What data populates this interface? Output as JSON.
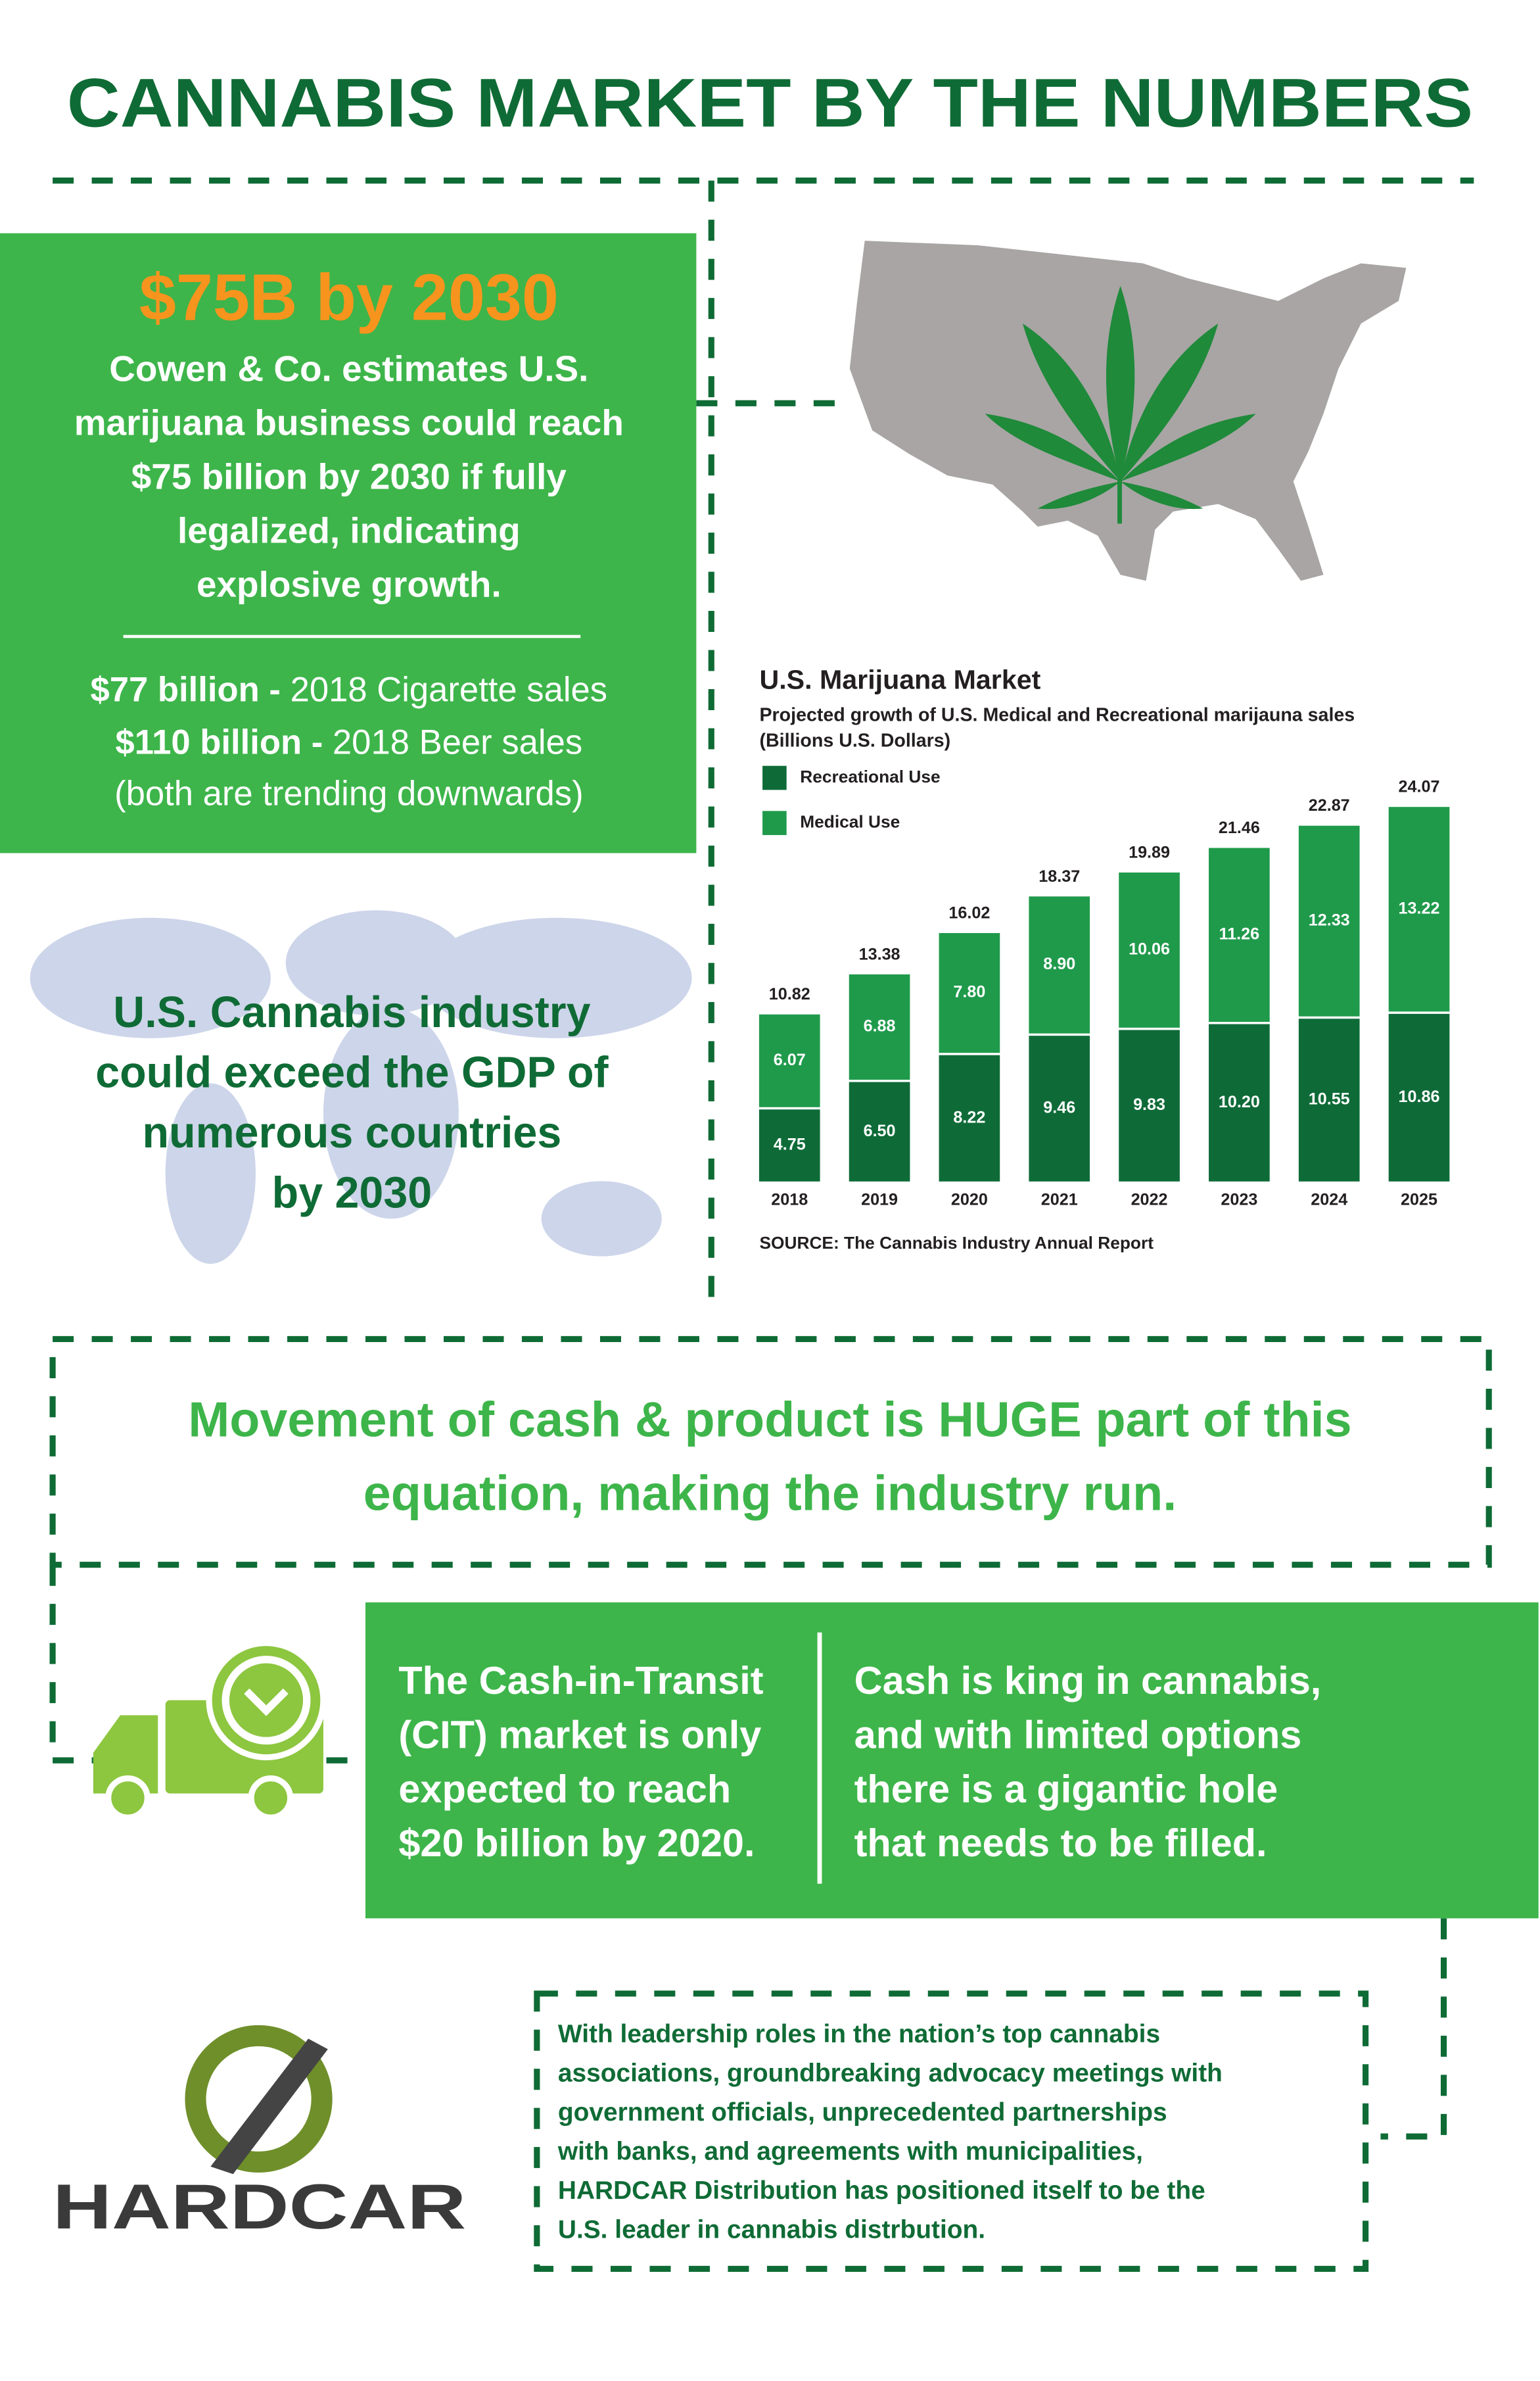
{
  "header": {
    "title": "CANNABIS MARKET BY THE NUMBERS"
  },
  "left_panel": {
    "headline": "$75B by 2030",
    "lines": [
      "Cowen & Co. estimates U.S.",
      "marijuana business could reach",
      "$75 billion by 2030 if fully",
      "legalized, indicating",
      "explosive growth."
    ],
    "comparisons": [
      {
        "bold": "$77 billion -",
        "text": "2018 Cigarette sales"
      },
      {
        "bold": "$110 billion -",
        "text": "2018 Beer sales"
      }
    ],
    "note": "(both are trending downwards)"
  },
  "world_panel": {
    "lines": [
      "U.S. Cannabis industry",
      "could exceed the GDP of",
      "numerous countries",
      "by 2030"
    ]
  },
  "chart_data": {
    "type": "bar",
    "stacked": true,
    "title": "U.S. Marijuana Market",
    "subtitle": [
      "Projected growth of U.S. Medical and Recreational marijauna sales",
      "(Billions U.S. Dollars)"
    ],
    "categories": [
      "2018",
      "2019",
      "2020",
      "2021",
      "2022",
      "2023",
      "2024",
      "2025"
    ],
    "series": [
      {
        "name": "Recreational Use",
        "color": "#0e6b38",
        "values": [
          4.75,
          6.5,
          8.22,
          9.46,
          9.83,
          10.2,
          10.55,
          10.86
        ],
        "value_labels": [
          "4.75",
          "6.50",
          "8.22",
          "9.46",
          "9.83",
          "10.20",
          "10.55",
          "10.86"
        ]
      },
      {
        "name": "Medical Use",
        "color": "#1f9a4b",
        "values": [
          6.07,
          6.88,
          7.8,
          8.9,
          10.06,
          11.26,
          12.33,
          13.22
        ],
        "value_labels": [
          "6.07",
          "6.88",
          "7.80",
          "8.90",
          "10.06",
          "11.26",
          "12.33",
          "13.22"
        ]
      }
    ],
    "totals": [
      10.82,
      13.38,
      16.02,
      18.37,
      19.89,
      21.46,
      22.87,
      24.07
    ],
    "source": "SOURCE: The Cannabis Industry Annual Report"
  },
  "movement": {
    "lines": [
      "Movement of cash & product is HUGE part of this",
      "equation, making the industry run."
    ]
  },
  "cit": {
    "lines": [
      "The Cash-in-Transit",
      "(CIT) market is only",
      "expected to reach",
      "$20 billion by 2020."
    ]
  },
  "cash": {
    "lines": [
      "Cash is king in cannabis,",
      "and with limited options",
      "there is a gigantic hole",
      "that needs to be filled."
    ]
  },
  "hardcar": {
    "lines": [
      "With leadership roles in the nation’s top cannabis",
      "associations, groundbreaking advocacy meetings with",
      "government officials, unprecedented partnerships",
      "with banks, and agreements with municipalities,",
      "HARDCAR Distribution has positioned itself to be the",
      "U.S. leader in cannabis distrbution."
    ],
    "logo": "HARDCAR"
  }
}
